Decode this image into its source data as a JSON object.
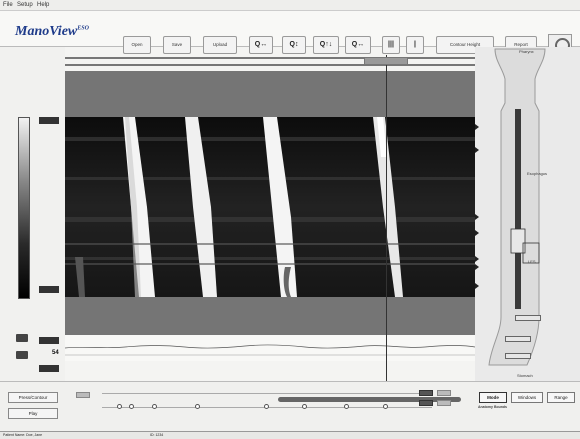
{
  "menu": {
    "file": "File",
    "setup": "Setup",
    "help": "Help"
  },
  "logo": {
    "text": "ManoView",
    "suffix": "ESO"
  },
  "toolbar": {
    "buttons": [
      "Open",
      "Save",
      "Upload"
    ],
    "icon_buttons": [
      "Q↔",
      "Q↕",
      "Q↑↓",
      "Q↔",
      "|||",
      "|"
    ],
    "contour_button": "Contour Height",
    "report_button": "Report"
  },
  "left_panel": {
    "scale_top": "",
    "scale_bottom": "",
    "trace_value": "54"
  },
  "cursor": {
    "label": ""
  },
  "trace_labels": [
    "",
    "",
    ""
  ],
  "bottom": {
    "press_contour_button": "Press/Contour",
    "play_button": "Play",
    "tl_labels": [
      "",
      "",
      "",
      ""
    ],
    "view_buttons": [
      "Mode",
      "Windows",
      "Range"
    ],
    "anatomy_header": "Anatomy Bounds"
  },
  "anatomy_panel": {
    "labels": [
      "Pharynx",
      "Esophagus",
      "LES",
      "Stomach"
    ],
    "tags": [
      "",
      "",
      ""
    ]
  },
  "status": {
    "patient": "Patient Name: Doe, Jane",
    "id": "ID: 1234",
    "study": "",
    "duration": "",
    "protocol": ""
  },
  "colors": {
    "logo": "#1e3b8a",
    "band": "#757575",
    "topo_bg": "#111111",
    "swallow": "#f5f5f5"
  }
}
